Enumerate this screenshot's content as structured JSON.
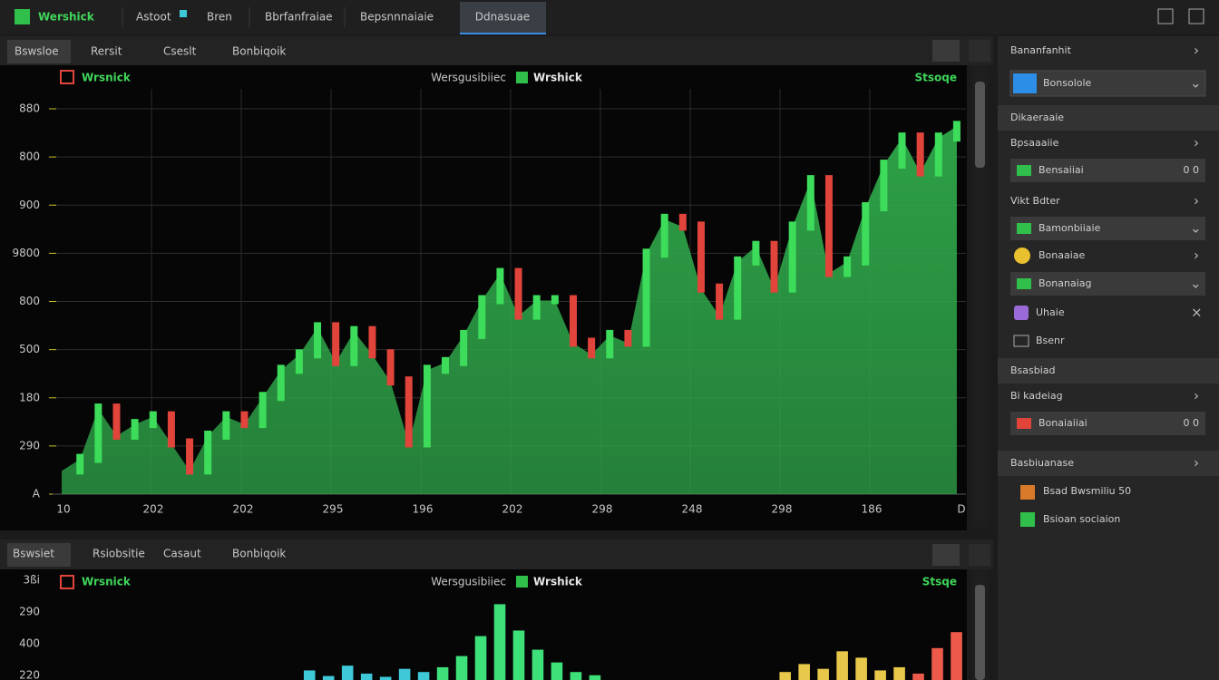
{
  "toolbar": {
    "logo": "Wershick",
    "menu": [
      "Astoot",
      "Bren",
      "Bbrfanfraiae",
      "Bepsnnnaiaie",
      "Ddnasuae"
    ]
  },
  "top_panel": {
    "tabs": [
      "Bswsloe",
      "Rersit",
      "Cseslt",
      "Bonbiqoik"
    ],
    "header_left": "Wrsnick",
    "header_center": "Wersgusibiiec",
    "header_brand": "Wrshick",
    "header_right": "Stsoqe",
    "y_labels": [
      "880",
      "800",
      "900",
      "9800",
      "800",
      "500",
      "180",
      "290",
      "A"
    ],
    "x_labels": [
      "10",
      "202",
      "202",
      "295",
      "196",
      "202",
      "298",
      "248",
      "298",
      "186",
      "D"
    ]
  },
  "bottom_panel": {
    "tabs": [
      "Bswsiet",
      "Rsiobsitie",
      "Casaut",
      "Bonbiqoik"
    ],
    "header_left": "Wrsnick",
    "header_center": "Wersgusibiiec",
    "header_brand": "Wrshick",
    "header_right": "Stsqe",
    "y_labels": [
      "3ßi",
      "290",
      "400",
      "220"
    ]
  },
  "chart_data": [
    {
      "type": "area",
      "ylim": [
        0,
        100
      ],
      "up_color": "#3ddc5a",
      "down_color": "#e0443a",
      "series": [
        {
          "color": "#2fa84a",
          "values": [
            6,
            9,
            22,
            15,
            18,
            20,
            13,
            6,
            15,
            20,
            18,
            25,
            32,
            36,
            43,
            34,
            42,
            36,
            29,
            13,
            32,
            34,
            41,
            50,
            57,
            46,
            50,
            50,
            39,
            36,
            41,
            39,
            62,
            71,
            69,
            53,
            46,
            60,
            64,
            53,
            69,
            81,
            57,
            60,
            74,
            85,
            92,
            83,
            92,
            95
          ]
        }
      ]
    },
    {
      "type": "bar",
      "ylim": [
        0,
        100
      ],
      "series": [
        {
          "color": "#3ec8d8",
          "values": [
            null,
            null,
            null,
            null,
            null,
            null,
            null,
            null,
            null,
            null,
            null,
            null,
            null,
            12,
            5,
            18,
            8,
            4,
            14,
            10,
            null,
            null,
            null,
            null,
            null,
            null,
            null,
            null,
            null,
            null,
            null,
            null,
            null,
            null,
            null,
            null,
            null,
            null,
            null,
            null,
            null,
            null,
            null,
            null,
            null,
            null,
            null,
            null
          ]
        },
        {
          "color": "#3ee07a",
          "values": [
            null,
            null,
            null,
            null,
            null,
            null,
            null,
            null,
            null,
            null,
            null,
            null,
            null,
            null,
            null,
            null,
            null,
            null,
            null,
            null,
            16,
            30,
            55,
            95,
            62,
            38,
            22,
            10,
            6,
            null,
            null,
            null,
            null,
            null,
            null,
            null,
            null,
            null,
            null,
            null,
            null,
            null,
            null,
            null,
            null,
            null,
            null,
            null
          ]
        },
        {
          "color": "#e8c84a",
          "values": [
            null,
            null,
            null,
            null,
            null,
            null,
            null,
            null,
            null,
            null,
            null,
            null,
            null,
            null,
            null,
            null,
            null,
            null,
            null,
            null,
            null,
            null,
            null,
            null,
            null,
            null,
            null,
            null,
            null,
            null,
            null,
            null,
            null,
            null,
            null,
            null,
            null,
            null,
            10,
            20,
            14,
            36,
            28,
            12,
            16,
            null,
            null,
            null
          ]
        },
        {
          "color": "#ee5a4a",
          "values": [
            null,
            null,
            null,
            null,
            null,
            null,
            null,
            null,
            null,
            null,
            null,
            null,
            null,
            null,
            null,
            null,
            null,
            null,
            null,
            null,
            null,
            null,
            null,
            null,
            null,
            null,
            null,
            null,
            null,
            null,
            null,
            null,
            null,
            null,
            null,
            null,
            null,
            null,
            null,
            null,
            null,
            null,
            null,
            null,
            null,
            8,
            40,
            60
          ]
        }
      ]
    }
  ],
  "sidebar": {
    "header": "Bananfanhit",
    "dropdown": "Bonsolole",
    "section1": "Dikaeraaie",
    "row1": "Bpsaaaiie",
    "box1": "Bensaiiai",
    "box1_value": "0 0",
    "row2": "Vikt Bdter",
    "drop2": "Bamonbiiaie",
    "row3": "Bonaaiae",
    "drop3": "Bonanaiag",
    "row4": "Uhaie",
    "row5": "Bsenr",
    "section2": "Bsasbiad",
    "row6": "Bi kadeiag",
    "box2": "Bonaiaiiai",
    "box2_value": "0 0",
    "section3": "Basbiuanase",
    "row7": "Bsad Bwsmiliu 50",
    "row8": "Bsioan sociaion"
  }
}
